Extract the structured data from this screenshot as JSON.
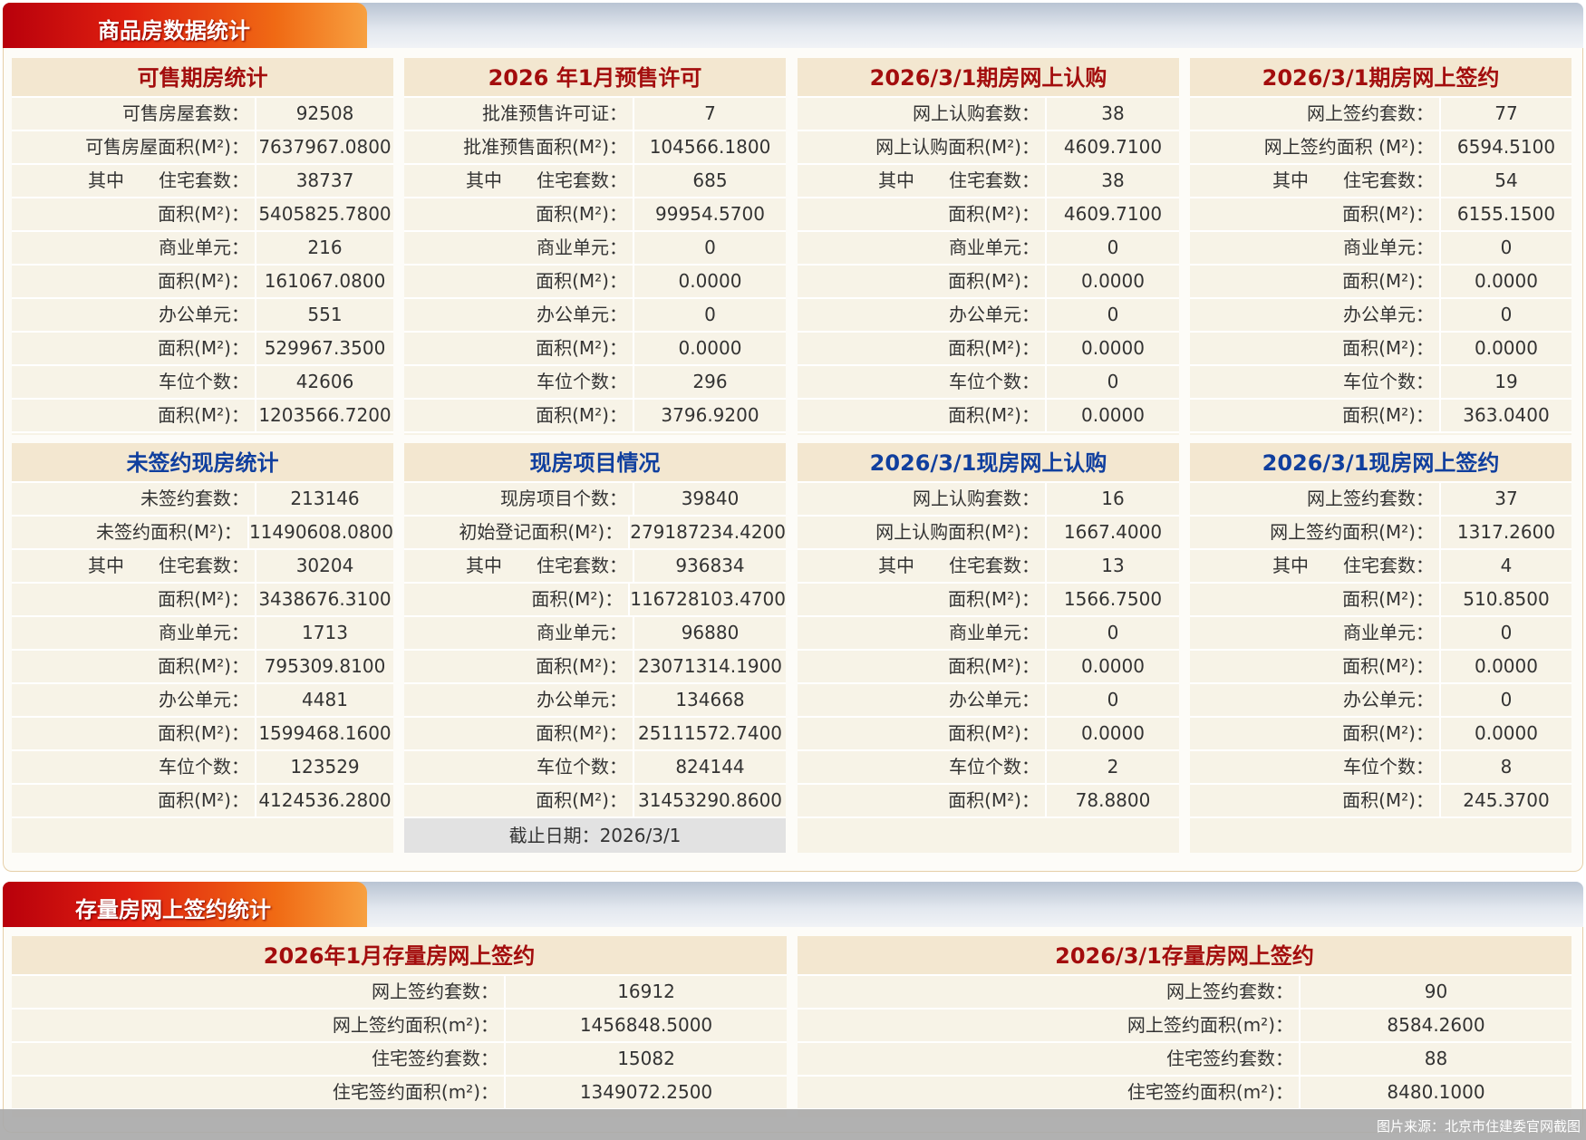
{
  "section1_title": "商品房数据统计",
  "section2_title": "存量房网上签约统计",
  "colors": {
    "red_title": "#a30d0d",
    "blue_title": "#103f9e",
    "panel_bg": "#f7f3e7",
    "title_bg": "#f3e7d0"
  },
  "panels": [
    {
      "title": "可售期房统计",
      "color": "red",
      "rows": [
        {
          "label": "可售房屋套数：",
          "value": "92508"
        },
        {
          "label": "可售房屋面积(M²)：",
          "value": "7637967.0800"
        },
        {
          "prefix": "其中",
          "label": "住宅套数：",
          "value": "38737"
        },
        {
          "label": "面积(M²)：",
          "value": "5405825.7800"
        },
        {
          "label": "商业单元：",
          "value": "216"
        },
        {
          "label": "面积(M²)：",
          "value": "161067.0800"
        },
        {
          "label": "办公单元：",
          "value": "551"
        },
        {
          "label": "面积(M²)：",
          "value": "529967.3500"
        },
        {
          "label": "车位个数：",
          "value": "42606"
        },
        {
          "label": "面积(M²)：",
          "value": "1203566.7200"
        }
      ]
    },
    {
      "title": "2026 年1月预售许可",
      "color": "red",
      "rows": [
        {
          "label": "批准预售许可证：",
          "value": "7"
        },
        {
          "label": "批准预售面积(M²)：",
          "value": "104566.1800"
        },
        {
          "prefix": "其中",
          "label": "住宅套数：",
          "value": "685"
        },
        {
          "label": "面积(M²)：",
          "value": "99954.5700"
        },
        {
          "label": "商业单元：",
          "value": "0"
        },
        {
          "label": "面积(M²)：",
          "value": "0.0000"
        },
        {
          "label": "办公单元：",
          "value": "0"
        },
        {
          "label": "面积(M²)：",
          "value": "0.0000"
        },
        {
          "label": "车位个数：",
          "value": "296"
        },
        {
          "label": "面积(M²)：",
          "value": "3796.9200"
        }
      ]
    },
    {
      "title": "2026/3/1期房网上认购",
      "color": "red",
      "rows": [
        {
          "label": "网上认购套数：",
          "value": "38"
        },
        {
          "label": "网上认购面积(M²)：",
          "value": "4609.7100"
        },
        {
          "prefix": "其中",
          "label": "住宅套数：",
          "value": "38"
        },
        {
          "label": "面积(M²)：",
          "value": "4609.7100"
        },
        {
          "label": "商业单元：",
          "value": "0"
        },
        {
          "label": "面积(M²)：",
          "value": "0.0000"
        },
        {
          "label": "办公单元：",
          "value": "0"
        },
        {
          "label": "面积(M²)：",
          "value": "0.0000"
        },
        {
          "label": "车位个数：",
          "value": "0"
        },
        {
          "label": "面积(M²)：",
          "value": "0.0000"
        }
      ]
    },
    {
      "title": "2026/3/1期房网上签约",
      "color": "red",
      "rows": [
        {
          "label": "网上签约套数：",
          "value": "77"
        },
        {
          "label": "网上签约面积 (M²)：",
          "value": "6594.5100"
        },
        {
          "prefix": "其中",
          "label": "住宅套数：",
          "value": "54"
        },
        {
          "label": "面积(M²)：",
          "value": "6155.1500"
        },
        {
          "label": "商业单元：",
          "value": "0"
        },
        {
          "label": "面积(M²)：",
          "value": "0.0000"
        },
        {
          "label": "办公单元：",
          "value": "0"
        },
        {
          "label": "面积(M²)：",
          "value": "0.0000"
        },
        {
          "label": "车位个数：",
          "value": "19"
        },
        {
          "label": "面积(M²)：",
          "value": "363.0400"
        }
      ]
    },
    {
      "title": "未签约现房统计",
      "color": "blue",
      "rows": [
        {
          "label": "未签约套数：",
          "value": "213146"
        },
        {
          "label": "未签约面积(M²)：",
          "value": "11490608.0800"
        },
        {
          "prefix": "其中",
          "label": "住宅套数：",
          "value": "30204"
        },
        {
          "label": "面积(M²)：",
          "value": "3438676.3100"
        },
        {
          "label": "商业单元：",
          "value": "1713"
        },
        {
          "label": "面积(M²)：",
          "value": "795309.8100"
        },
        {
          "label": "办公单元：",
          "value": "4481"
        },
        {
          "label": "面积(M²)：",
          "value": "1599468.1600"
        },
        {
          "label": "车位个数：",
          "value": "123529"
        },
        {
          "label": "面积(M²)：",
          "value": "4124536.2800"
        }
      ]
    },
    {
      "title": "现房项目情况",
      "color": "blue",
      "cutoff": "截止日期：2026/3/1",
      "rows": [
        {
          "label": "现房项目个数：",
          "value": "39840"
        },
        {
          "label": "初始登记面积(M²)：",
          "value": "279187234.4200"
        },
        {
          "prefix": "其中",
          "label": "住宅套数：",
          "value": "936834"
        },
        {
          "label": "面积(M²)：",
          "value": "116728103.4700"
        },
        {
          "label": "商业单元：",
          "value": "96880"
        },
        {
          "label": "面积(M²)：",
          "value": "23071314.1900"
        },
        {
          "label": "办公单元：",
          "value": "134668"
        },
        {
          "label": "面积(M²)：",
          "value": "25111572.7400"
        },
        {
          "label": "车位个数：",
          "value": "824144"
        },
        {
          "label": "面积(M²)：",
          "value": "31453290.8600"
        }
      ]
    },
    {
      "title": "2026/3/1现房网上认购",
      "color": "blue",
      "rows": [
        {
          "label": "网上认购套数：",
          "value": "16"
        },
        {
          "label": "网上认购面积(M²)：",
          "value": "1667.4000"
        },
        {
          "prefix": "其中",
          "label": "住宅套数：",
          "value": "13"
        },
        {
          "label": "面积(M²)：",
          "value": "1566.7500"
        },
        {
          "label": "商业单元：",
          "value": "0"
        },
        {
          "label": "面积(M²)：",
          "value": "0.0000"
        },
        {
          "label": "办公单元：",
          "value": "0"
        },
        {
          "label": "面积(M²)：",
          "value": "0.0000"
        },
        {
          "label": "车位个数：",
          "value": "2"
        },
        {
          "label": "面积(M²)：",
          "value": "78.8800"
        }
      ]
    },
    {
      "title": "2026/3/1现房网上签约",
      "color": "blue",
      "rows": [
        {
          "label": "网上签约套数：",
          "value": "37"
        },
        {
          "label": "网上签约面积(M²)：",
          "value": "1317.2600"
        },
        {
          "prefix": "其中",
          "label": "住宅套数：",
          "value": "4"
        },
        {
          "label": "面积(M²)：",
          "value": "510.8500"
        },
        {
          "label": "商业单元：",
          "value": "0"
        },
        {
          "label": "面积(M²)：",
          "value": "0.0000"
        },
        {
          "label": "办公单元：",
          "value": "0"
        },
        {
          "label": "面积(M²)：",
          "value": "0.0000"
        },
        {
          "label": "车位个数：",
          "value": "8"
        },
        {
          "label": "面积(M²)：",
          "value": "245.3700"
        }
      ]
    }
  ],
  "stock_panels": [
    {
      "title": "2026年1月存量房网上签约",
      "color": "red",
      "rows": [
        {
          "label": "网上签约套数：",
          "value": "16912"
        },
        {
          "label": "网上签约面积(m²)：",
          "value": "1456848.5000"
        },
        {
          "label": "住宅签约套数：",
          "value": "15082"
        },
        {
          "label": "住宅签约面积(m²)：",
          "value": "1349072.2500"
        }
      ]
    },
    {
      "title": "2026/3/1存量房网上签约",
      "color": "red",
      "rows": [
        {
          "label": "网上签约套数：",
          "value": "90"
        },
        {
          "label": "网上签约面积(m²)：",
          "value": "8584.2600"
        },
        {
          "label": "住宅签约套数：",
          "value": "88"
        },
        {
          "label": "住宅签约面积(m²)：",
          "value": "8480.1000"
        }
      ]
    }
  ],
  "footer_note": "图片来源：北京市住建委官网截图"
}
